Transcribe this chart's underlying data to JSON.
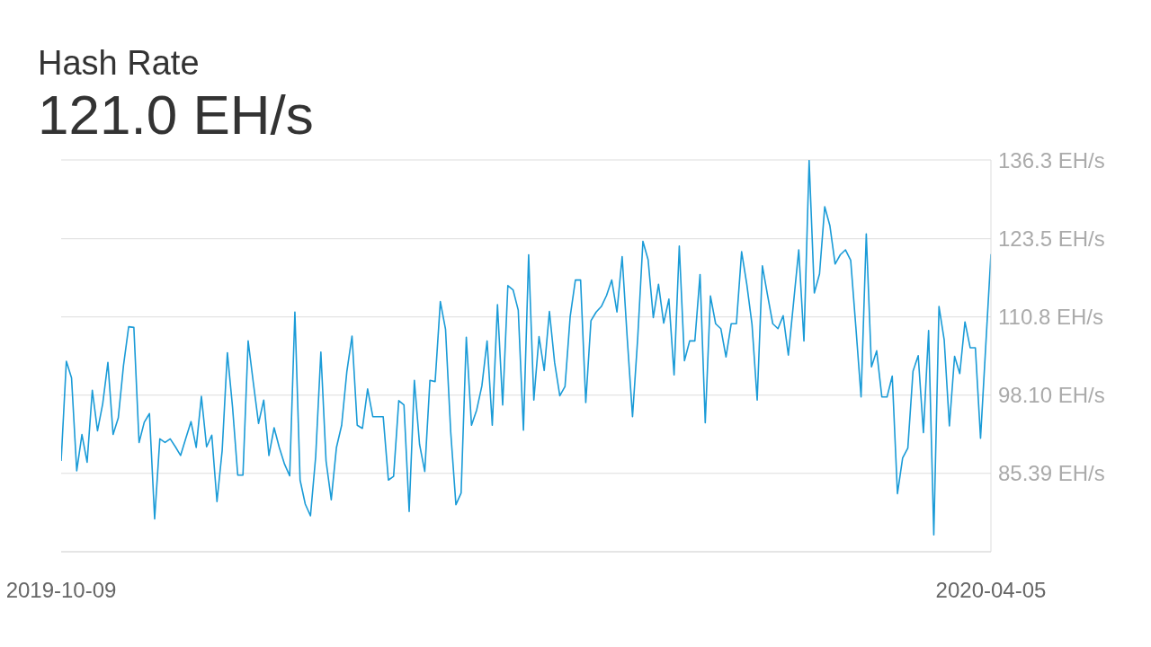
{
  "chart_data": {
    "type": "line",
    "title": "Hash Rate",
    "subtitle": "121.0 EH/s",
    "x": [
      "2019-10-09",
      "2019-10-10",
      "2019-10-11",
      "2019-10-12",
      "2019-10-13",
      "2019-10-14",
      "2019-10-15",
      "2019-10-16",
      "2019-10-17",
      "2019-10-18",
      "2019-10-19",
      "2019-10-20",
      "2019-10-21",
      "2019-10-22",
      "2019-10-23",
      "2019-10-24",
      "2019-10-25",
      "2019-10-26",
      "2019-10-27",
      "2019-10-28",
      "2019-10-29",
      "2019-10-30",
      "2019-10-31",
      "2019-11-01",
      "2019-11-02",
      "2019-11-03",
      "2019-11-04",
      "2019-11-05",
      "2019-11-06",
      "2019-11-07",
      "2019-11-08",
      "2019-11-09",
      "2019-11-10",
      "2019-11-11",
      "2019-11-12",
      "2019-11-13",
      "2019-11-14",
      "2019-11-15",
      "2019-11-16",
      "2019-11-17",
      "2019-11-18",
      "2019-11-19",
      "2019-11-20",
      "2019-11-21",
      "2019-11-22",
      "2019-11-23",
      "2019-11-24",
      "2019-11-25",
      "2019-11-26",
      "2019-11-27",
      "2019-11-28",
      "2019-11-29",
      "2019-11-30",
      "2019-12-01",
      "2019-12-02",
      "2019-12-03",
      "2019-12-04",
      "2019-12-05",
      "2019-12-06",
      "2019-12-07",
      "2019-12-08",
      "2019-12-09",
      "2019-12-10",
      "2019-12-11",
      "2019-12-12",
      "2019-12-13",
      "2019-12-14",
      "2019-12-15",
      "2019-12-16",
      "2019-12-17",
      "2019-12-18",
      "2019-12-19",
      "2019-12-20",
      "2019-12-21",
      "2019-12-22",
      "2019-12-23",
      "2019-12-24",
      "2019-12-25",
      "2019-12-26",
      "2019-12-27",
      "2019-12-28",
      "2019-12-29",
      "2019-12-30",
      "2019-12-31",
      "2020-01-01",
      "2020-01-02",
      "2020-01-03",
      "2020-01-04",
      "2020-01-05",
      "2020-01-06",
      "2020-01-07",
      "2020-01-08",
      "2020-01-09",
      "2020-01-10",
      "2020-01-11",
      "2020-01-12",
      "2020-01-13",
      "2020-01-14",
      "2020-01-15",
      "2020-01-16",
      "2020-01-17",
      "2020-01-18",
      "2020-01-19",
      "2020-01-20",
      "2020-01-21",
      "2020-01-22",
      "2020-01-23",
      "2020-01-24",
      "2020-01-25",
      "2020-01-26",
      "2020-01-27",
      "2020-01-28",
      "2020-01-29",
      "2020-01-30",
      "2020-01-31",
      "2020-02-01",
      "2020-02-02",
      "2020-02-03",
      "2020-02-04",
      "2020-02-05",
      "2020-02-06",
      "2020-02-07",
      "2020-02-08",
      "2020-02-09",
      "2020-02-10",
      "2020-02-11",
      "2020-02-12",
      "2020-02-13",
      "2020-02-14",
      "2020-02-15",
      "2020-02-16",
      "2020-02-17",
      "2020-02-18",
      "2020-02-19",
      "2020-02-20",
      "2020-02-21",
      "2020-02-22",
      "2020-02-23",
      "2020-02-24",
      "2020-02-25",
      "2020-02-26",
      "2020-02-27",
      "2020-02-28",
      "2020-02-29",
      "2020-03-01",
      "2020-03-02",
      "2020-03-03",
      "2020-03-04",
      "2020-03-05",
      "2020-03-06",
      "2020-03-07",
      "2020-03-08",
      "2020-03-09",
      "2020-03-10",
      "2020-03-11",
      "2020-03-12",
      "2020-03-13",
      "2020-03-14",
      "2020-03-15",
      "2020-03-16",
      "2020-03-17",
      "2020-03-18",
      "2020-03-19",
      "2020-03-20",
      "2020-03-21",
      "2020-03-22",
      "2020-03-23",
      "2020-03-24",
      "2020-03-25",
      "2020-03-26",
      "2020-03-27",
      "2020-03-28",
      "2020-03-29",
      "2020-03-30",
      "2020-03-31",
      "2020-04-01",
      "2020-04-02",
      "2020-04-03",
      "2020-04-04",
      "2020-04-05"
    ],
    "series": [
      {
        "color": "#1a9bd7",
        "values": [
          87.4,
          103.6,
          100.9,
          85.8,
          91.7,
          87.2,
          98.9,
          92.3,
          96.7,
          103.4,
          91.7,
          94.4,
          102.9,
          109.2,
          109.1,
          90.4,
          93.7,
          95.1,
          78.0,
          91.0,
          90.4,
          91.0,
          89.7,
          88.3,
          91.1,
          93.8,
          89.6,
          97.9,
          89.7,
          91.6,
          80.8,
          89.1,
          105.0,
          96.1,
          85.1,
          85.1,
          106.9,
          100.1,
          93.5,
          97.3,
          88.3,
          92.8,
          89.6,
          86.9,
          85.0,
          111.6,
          84.3,
          80.4,
          78.5,
          88.1,
          105.1,
          87.4,
          81.1,
          89.6,
          93.2,
          101.9,
          107.7,
          93.2,
          92.7,
          99.1,
          94.6,
          94.6,
          94.6,
          84.3,
          84.9,
          97.2,
          96.5,
          79.2,
          100.5,
          90.1,
          85.7,
          100.5,
          100.3,
          113.3,
          108.8,
          92.1,
          80.3,
          82.2,
          107.5,
          93.2,
          95.7,
          99.6,
          106.9,
          93.2,
          112.8,
          96.5,
          115.9,
          115.2,
          111.9,
          92.4,
          120.9,
          97.3,
          107.6,
          102.1,
          111.7,
          103.4,
          98.0,
          99.5,
          110.9,
          116.8,
          116.8,
          96.9,
          110.2,
          111.6,
          112.5,
          114.3,
          116.8,
          111.6,
          120.6,
          107.1,
          94.6,
          107.4,
          123.1,
          120.1,
          110.7,
          116.1,
          109.8,
          113.7,
          101.4,
          122.3,
          103.7,
          106.9,
          106.9,
          117.7,
          93.6,
          114.2,
          109.7,
          108.9,
          104.3,
          109.7,
          109.7,
          121.4,
          116.1,
          109.6,
          97.3,
          119.1,
          114.3,
          109.7,
          108.9,
          111.0,
          104.6,
          113.1,
          121.7,
          106.9,
          136.2,
          114.7,
          117.8,
          128.7,
          125.6,
          119.4,
          120.9,
          121.7,
          120.0,
          109.1,
          97.8,
          124.3,
          102.7,
          105.3,
          97.8,
          97.8,
          101.2,
          82.1,
          87.9,
          89.5,
          102.0,
          104.5,
          92.0,
          108.6,
          75.4,
          112.5,
          107.1,
          93.1,
          104.4,
          101.6,
          110.0,
          105.8,
          105.8,
          91.1,
          106.1,
          121.0
        ]
      }
    ],
    "xlim": [
      "2019-10-09",
      "2020-04-05"
    ],
    "xticks": [
      "2019-10-09",
      "2020-04-05"
    ],
    "ylim": [
      72.66,
      136.3
    ],
    "yticks": [
      {
        "value": 72.66,
        "label": null
      },
      {
        "value": 85.39,
        "label": "85.39 EH/s"
      },
      {
        "value": 98.1,
        "label": "98.10 EH/s"
      },
      {
        "value": 110.8,
        "label": "110.8 EH/s"
      },
      {
        "value": 123.5,
        "label": "123.5 EH/s"
      },
      {
        "value": 136.3,
        "label": "136.3 EH/s"
      }
    ],
    "grid": "y",
    "marker": "none",
    "line_style": "solid"
  }
}
